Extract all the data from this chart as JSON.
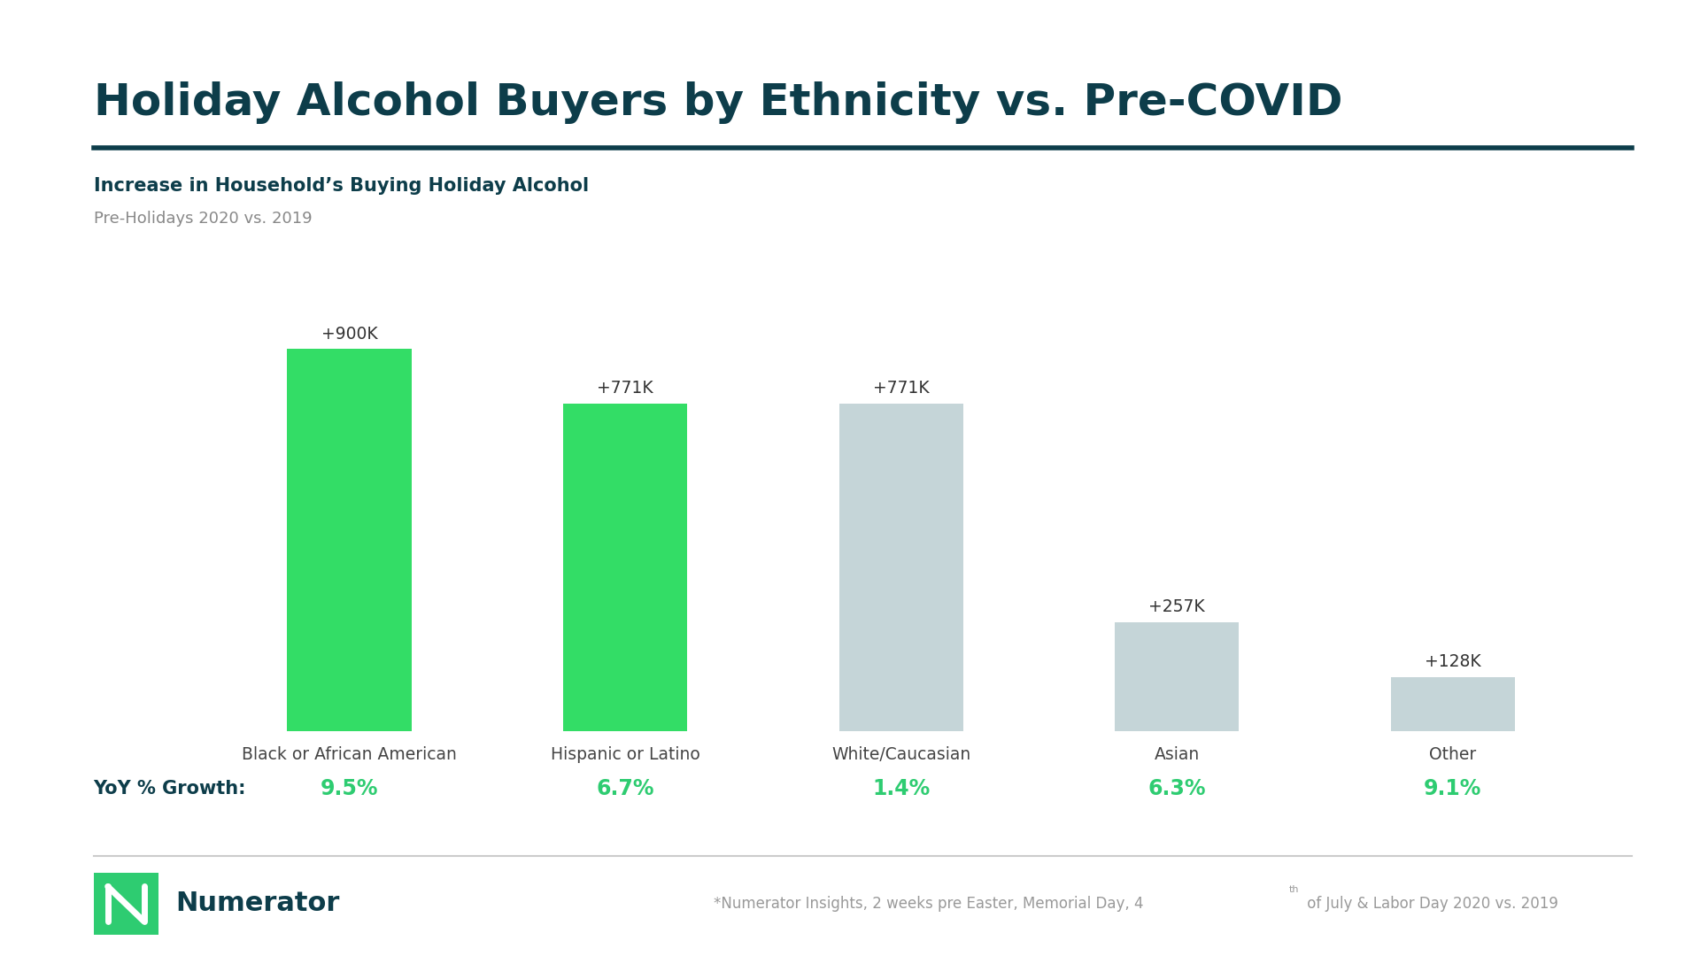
{
  "title": "Holiday Alcohol Buyers by Ethnicity vs. Pre-COVID",
  "subtitle": "Increase in Household’s Buying Holiday Alcohol",
  "subtitle2": "Pre-Holidays 2020 vs. 2019",
  "categories": [
    "Black or African American",
    "Hispanic or Latino",
    "White/Caucasian",
    "Asian",
    "Other"
  ],
  "values": [
    900,
    771,
    771,
    257,
    128
  ],
  "labels": [
    "+900K",
    "+771K",
    "+771K",
    "+257K",
    "+128K"
  ],
  "bar_colors": [
    "#33DD66",
    "#33DD66",
    "#C5D5D8",
    "#C5D5D8",
    "#C5D5D8"
  ],
  "yoy_label": "YoY % Growth:",
  "yoy_values": [
    "9.5%",
    "6.7%",
    "1.4%",
    "6.3%",
    "9.1%"
  ],
  "yoy_color": "#2ECC71",
  "background_color": "#FFFFFF",
  "title_color": "#0D3D4A",
  "subtitle_color": "#0D3D4A",
  "subtitle2_color": "#888888",
  "bar_label_color": "#333333",
  "category_label_color": "#444444",
  "separator_color": "#0D3D4A",
  "footer_sep_color": "#CCCCCC",
  "numerator_green": "#2ECC71",
  "numerator_text_color": "#0D3D4A",
  "footer_text_color": "#999999"
}
